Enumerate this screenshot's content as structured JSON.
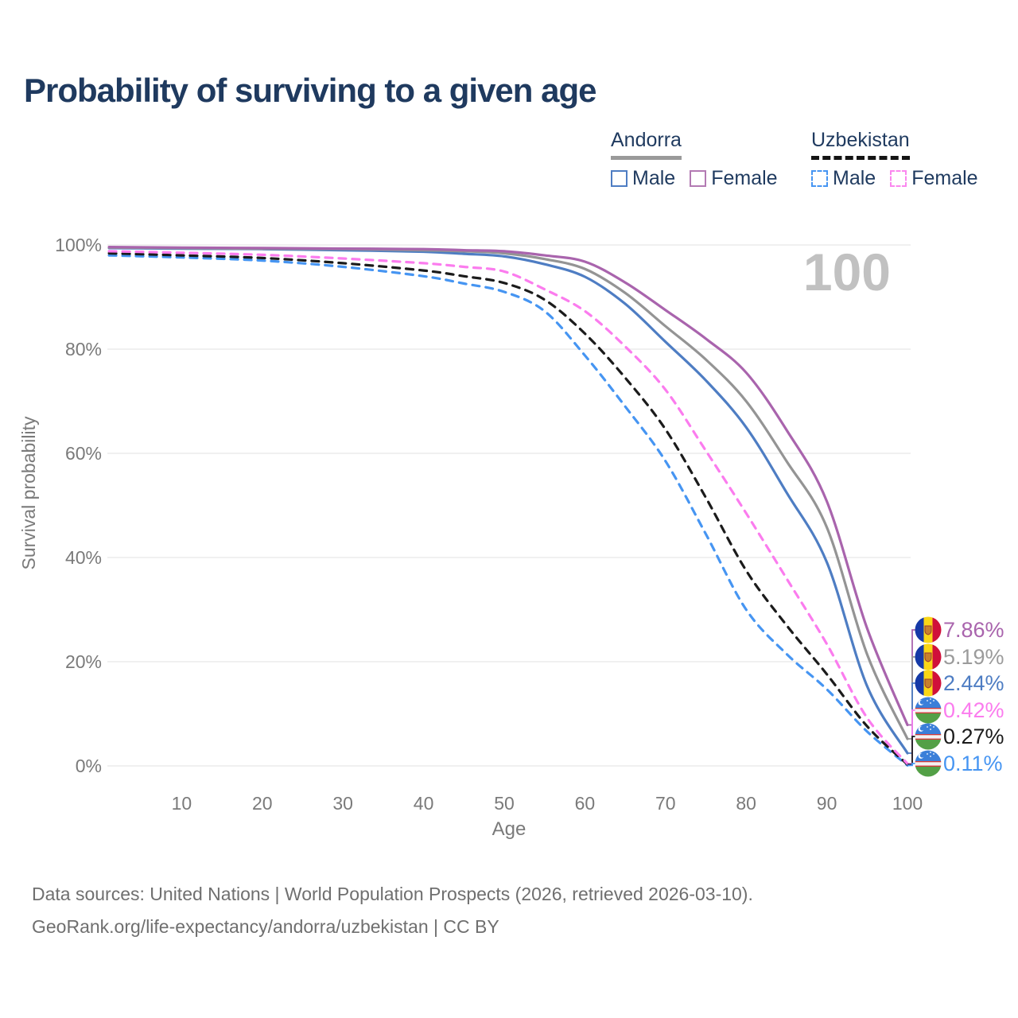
{
  "title": "Probability of surviving to a given age",
  "watermark_age": "100",
  "legend": {
    "andorra": {
      "name": "Andorra",
      "male_label": "Male",
      "female_label": "Female"
    },
    "uzbekistan": {
      "name": "Uzbekistan",
      "male_label": "Male",
      "female_label": "Female"
    }
  },
  "axes": {
    "y_title": "Survival probability",
    "x_title": "Age",
    "y_ticks": [
      "100%",
      "80%",
      "60%",
      "40%",
      "20%",
      "0%"
    ],
    "x_ticks": [
      "10",
      "20",
      "30",
      "40",
      "50",
      "60",
      "70",
      "80",
      "90",
      "100"
    ]
  },
  "end_labels": [
    {
      "label": "7.86%",
      "color": "#a964ad",
      "flag": "andorra"
    },
    {
      "label": "5.19%",
      "color": "#9b9b9b",
      "flag": "andorra"
    },
    {
      "label": "2.44%",
      "color": "#4e7dc3",
      "flag": "andorra"
    },
    {
      "label": "0.42%",
      "color": "#fb7cee",
      "flag": "uzbekistan"
    },
    {
      "label": "0.27%",
      "color": "#1b1b1b",
      "flag": "uzbekistan"
    },
    {
      "label": "0.11%",
      "color": "#4695f2",
      "flag": "uzbekistan"
    }
  ],
  "footer": {
    "line1": "Data sources: United Nations | World Population Prospects (2026, retrieved 2026-03-10).",
    "line2": "GeoRank.org/life-expectancy/andorra/uzbekistan | CC BY"
  },
  "chart_data": {
    "type": "line",
    "title": "Probability of surviving to a given age",
    "xlabel": "Age",
    "ylabel": "Survival probability",
    "xlim": [
      0,
      100
    ],
    "ylim": [
      0,
      100
    ],
    "grid": "horizontal-only",
    "legend_position": "top-right",
    "x_tick_values": [
      10,
      20,
      30,
      40,
      50,
      60,
      70,
      80,
      90,
      100
    ],
    "y_tick_values": [
      100,
      80,
      60,
      40,
      20,
      0
    ],
    "hover_age_indicator": 100,
    "x": [
      1,
      10,
      20,
      30,
      40,
      45,
      50,
      55,
      60,
      65,
      70,
      75,
      80,
      85,
      90,
      95,
      100
    ],
    "series": [
      {
        "name": "Andorra Female",
        "country": "Andorra",
        "sex": "Female",
        "style": "solid",
        "color": "#a964ad",
        "end_label": "7.86%",
        "values": [
          99.6,
          99.5,
          99.4,
          99.3,
          99.2,
          99.0,
          98.8,
          98.0,
          96.8,
          92.8,
          87.5,
          82.0,
          75.5,
          64.5,
          50.8,
          26.4,
          7.86
        ]
      },
      {
        "name": "Andorra (both sexes)",
        "country": "Andorra",
        "sex": "Both",
        "style": "solid",
        "color": "#949494",
        "end_label": "5.19%",
        "values": [
          99.5,
          99.4,
          99.3,
          99.2,
          99.0,
          98.8,
          98.4,
          97.3,
          95.4,
          90.8,
          84.4,
          78.0,
          70.0,
          58.5,
          45.8,
          21.4,
          5.19
        ]
      },
      {
        "name": "Andorra Male",
        "country": "Andorra",
        "sex": "Male",
        "style": "solid",
        "color": "#4e7dc3",
        "end_label": "2.44%",
        "values": [
          99.4,
          99.3,
          99.2,
          99.0,
          98.7,
          98.3,
          97.8,
          96.3,
          93.9,
          88.7,
          81.4,
          74.0,
          65.0,
          52.5,
          39.1,
          15.3,
          2.44
        ]
      },
      {
        "name": "Uzbekistan Female",
        "country": "Uzbekistan",
        "sex": "Female",
        "style": "dashed",
        "color": "#fb7cee",
        "end_label": "0.42%",
        "values": [
          98.8,
          98.5,
          98.1,
          97.4,
          96.5,
          95.8,
          94.9,
          91.5,
          87.3,
          80.5,
          72.2,
          60.5,
          48.5,
          36.0,
          23.4,
          9.2,
          0.42
        ]
      },
      {
        "name": "Uzbekistan (both sexes)",
        "country": "Uzbekistan",
        "sex": "Both",
        "style": "dashed",
        "color": "#1b1b1b",
        "end_label": "0.27%",
        "values": [
          98.4,
          98.0,
          97.5,
          96.5,
          95.1,
          94.0,
          92.7,
          89.5,
          83.0,
          74.5,
          64.6,
          51.5,
          37.5,
          27.0,
          17.6,
          7.6,
          0.27
        ]
      },
      {
        "name": "Uzbekistan Male",
        "country": "Uzbekistan",
        "sex": "Male",
        "style": "dashed",
        "color": "#4695f2",
        "end_label": "0.11%",
        "values": [
          98.0,
          97.6,
          97.0,
          95.8,
          94.0,
          92.6,
          91.0,
          87.3,
          78.8,
          69.0,
          58.5,
          44.5,
          30.0,
          21.5,
          14.7,
          6.6,
          0.11
        ]
      }
    ]
  }
}
